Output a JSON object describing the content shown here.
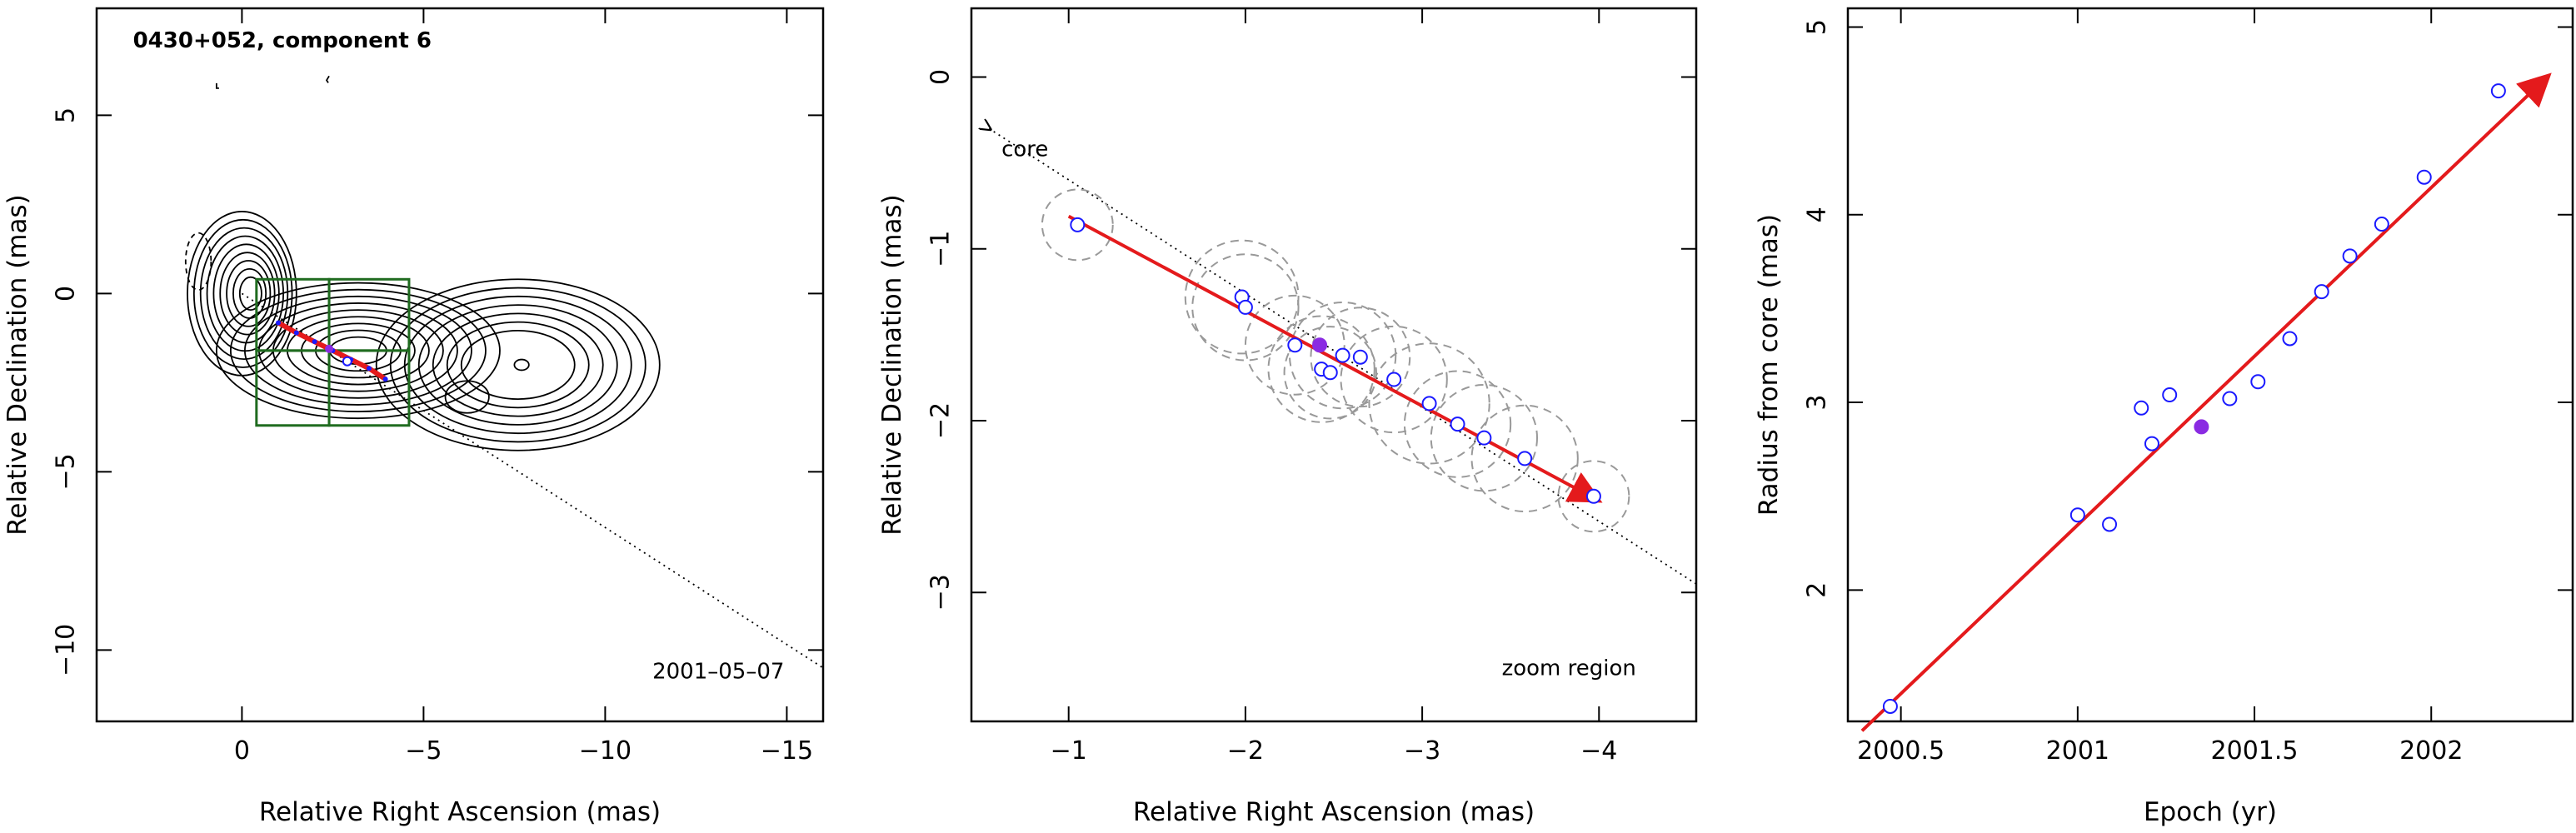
{
  "chart_data": [
    {
      "type": "contour",
      "title": "0430+052, component 6",
      "xlabel": "Relative Right Ascension (mas)",
      "ylabel": "Relative Declination (mas)",
      "xlim": [
        4,
        -16
      ],
      "ylim": [
        -12,
        8
      ],
      "xticks": [
        0,
        -5,
        -10,
        -15
      ],
      "yticks": [
        5,
        0,
        -5,
        -10
      ],
      "xtick_labels": [
        "0",
        "−5",
        "−10",
        "−15"
      ],
      "ytick_labels": [
        "5",
        "0",
        "−5",
        "−10"
      ],
      "date_label": "2001–05–07",
      "zoom_boxes": [
        {
          "x": [
            -0.4,
            -2.4
          ],
          "y": [
            0.4,
            -1.6
          ]
        },
        {
          "x": [
            -2.4,
            -4.6
          ],
          "y": [
            0.4,
            -1.6
          ]
        },
        {
          "x": [
            -0.4,
            -2.4
          ],
          "y": [
            -1.6,
            -3.7
          ]
        },
        {
          "x": [
            -2.4,
            -4.6
          ],
          "y": [
            -1.6,
            -3.7
          ]
        }
      ],
      "trajectory": {
        "x": [
          -1.0,
          -1.5,
          -2.0,
          -2.5,
          -3.0,
          -3.5,
          -3.95
        ],
        "y": [
          -0.82,
          -1.1,
          -1.35,
          -1.6,
          -1.85,
          -2.1,
          -2.4
        ]
      },
      "component_positions": {
        "x": [
          -2.4,
          -2.9
        ],
        "y": [
          -1.55,
          -1.9
        ]
      },
      "core_direction_line": {
        "x": [
          0,
          -16
        ],
        "y": [
          0,
          -10.5
        ]
      },
      "colors": {
        "contour": "#000000",
        "box": "#1f6b1f",
        "trajectory": "#e41a1c"
      }
    },
    {
      "type": "scatter",
      "xlabel": "Relative Right Ascension (mas)",
      "ylabel": "Relative Declination (mas)",
      "xlim": [
        -0.45,
        -4.55
      ],
      "ylim": [
        -3.75,
        0.4
      ],
      "xticks": [
        -1,
        -2,
        -3,
        -4
      ],
      "yticks": [
        0,
        -1,
        -2,
        -3
      ],
      "xtick_labels": [
        "−1",
        "−2",
        "−3",
        "−4"
      ],
      "ytick_labels": [
        "0",
        "−1",
        "−2",
        "−3"
      ],
      "core_label": "core",
      "zoom_label": "zoom region",
      "points_open": {
        "x": [
          -1.05,
          -1.98,
          -2.0,
          -2.28,
          -2.43,
          -2.48,
          -2.55,
          -2.65,
          -2.84,
          -3.04,
          -3.2,
          -3.35,
          -3.58,
          -3.97
        ],
        "y": [
          -0.86,
          -1.28,
          -1.34,
          -1.56,
          -1.7,
          -1.72,
          -1.62,
          -1.63,
          -1.76,
          -1.9,
          -2.02,
          -2.1,
          -2.22,
          -2.44
        ]
      },
      "points_filled": {
        "x": [
          -2.42
        ],
        "y": [
          -1.56
        ]
      },
      "gaussian_radii": [
        0.2,
        0.32,
        0.3,
        0.28,
        0.3,
        0.26,
        0.3,
        0.28,
        0.3,
        0.34,
        0.3,
        0.3,
        0.3,
        0.2
      ],
      "fit_arrow": {
        "x": [
          -1.0,
          -3.97
        ],
        "y": [
          -0.81,
          -2.45
        ]
      },
      "core_line": {
        "x": [
          -0.55,
          -4.55
        ],
        "y": [
          -0.3,
          -2.95
        ]
      },
      "colors": {
        "open_points": "#1a1aff",
        "filled_points": "#8a2be2",
        "fit": "#e41a1c",
        "circles": "#999999"
      }
    },
    {
      "type": "scatter",
      "xlabel": "Epoch (yr)",
      "ylabel": "Radius from core (mas)",
      "xlim": [
        2000.35,
        2002.4
      ],
      "ylim": [
        1.3,
        5.1
      ],
      "xticks": [
        2000.5,
        2001,
        2001.5,
        2002
      ],
      "yticks": [
        2,
        3,
        4,
        5
      ],
      "xtick_labels": [
        "2000.5",
        "2001",
        "2001.5",
        "2002"
      ],
      "ytick_labels": [
        "2",
        "3",
        "4",
        "5"
      ],
      "points_open": {
        "x": [
          2000.47,
          2001.0,
          2001.09,
          2001.18,
          2001.21,
          2001.26,
          2001.43,
          2001.51,
          2001.6,
          2001.69,
          2001.77,
          2001.86,
          2001.98,
          2002.19
        ],
        "y": [
          1.38,
          2.4,
          2.35,
          2.97,
          2.78,
          3.04,
          3.02,
          3.11,
          3.34,
          3.59,
          3.78,
          3.95,
          4.2,
          4.66
        ]
      },
      "points_filled": {
        "x": [
          2001.35
        ],
        "y": [
          2.87
        ]
      },
      "fit_arrow": {
        "x": [
          2000.39,
          2002.32
        ],
        "y": [
          1.25,
          4.72
        ]
      },
      "colors": {
        "open_points": "#1a1aff",
        "filled_points": "#8a2be2",
        "fit": "#e41a1c"
      }
    }
  ]
}
